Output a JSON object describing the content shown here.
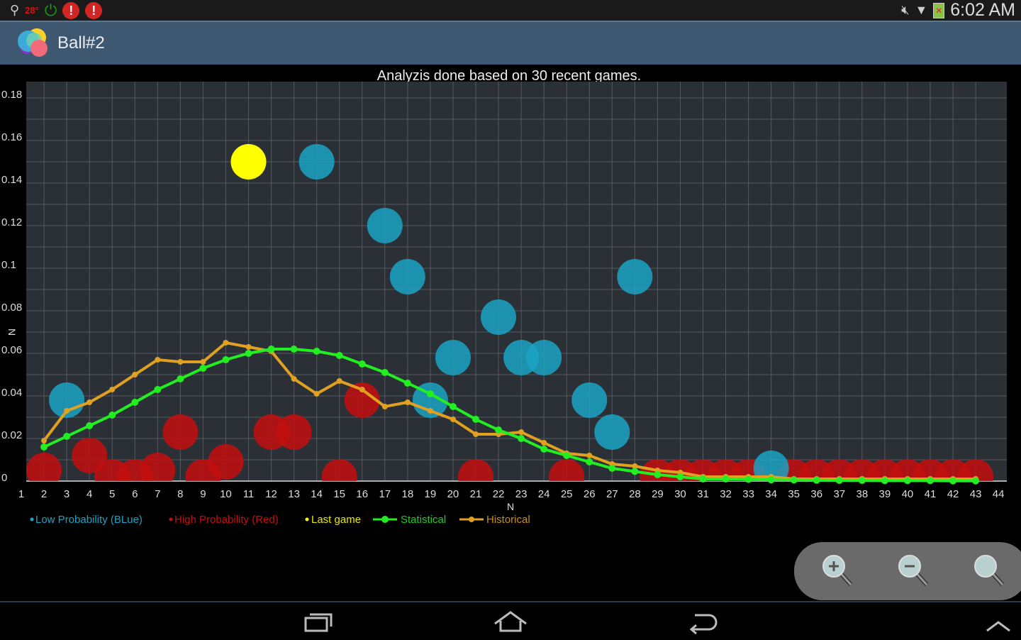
{
  "status_bar": {
    "temperature": "28°",
    "time": "6:02 AM",
    "icons": [
      "usb-icon",
      "power-icon",
      "alert-icon",
      "alert-icon",
      "mute-icon",
      "wifi-icon",
      "battery-icon"
    ]
  },
  "app_bar": {
    "title": "Ball#2",
    "logo": "app-logo-bubbles"
  },
  "colors": {
    "low": "#1aa3c4",
    "high": "#c40e0e",
    "last": "#ffff00",
    "statistical": "#22ee22",
    "historical": "#e0a020",
    "plot_bg": "#2b2f36",
    "app_bar": "#3e5872"
  },
  "chart_data": {
    "type": "scatter",
    "title": "Analyzis done based on 30 recent games.",
    "xlabel": "N",
    "ylabel": "N",
    "xlim": [
      1,
      44
    ],
    "ylim": [
      0,
      0.18
    ],
    "x_ticks": [
      "1",
      "2",
      "3",
      "4",
      "5",
      "6",
      "7",
      "8",
      "9",
      "10",
      "11",
      "12",
      "13",
      "14",
      "15",
      "16",
      "17",
      "18",
      "19",
      "20",
      "21",
      "22",
      "23",
      "24",
      "25",
      "26",
      "27",
      "28",
      "29",
      "30",
      "31",
      "32",
      "33",
      "34",
      "35",
      "36",
      "37",
      "38",
      "39",
      "40",
      "41",
      "42",
      "43",
      "44"
    ],
    "y_ticks": [
      "0",
      "0.02",
      "0.04",
      "0.06",
      "0.08",
      "0.1",
      "0.12",
      "0.14",
      "0.16",
      "0.18"
    ],
    "grid": true,
    "legend_placement": "bottom-left",
    "legend": [
      "Low Probability (BLue)",
      "High Probability (Red)",
      "Last game",
      "Statistical",
      "Historical"
    ],
    "bubbles": {
      "low": [
        [
          3,
          0.038
        ],
        [
          14,
          0.15
        ],
        [
          17,
          0.12
        ],
        [
          18,
          0.096
        ],
        [
          19,
          0.038
        ],
        [
          20,
          0.058
        ],
        [
          22,
          0.077
        ],
        [
          23,
          0.058
        ],
        [
          24,
          0.058
        ],
        [
          26,
          0.038
        ],
        [
          27,
          0.023
        ],
        [
          28,
          0.096
        ],
        [
          34,
          0.006
        ]
      ],
      "high": [
        [
          2,
          0.005
        ],
        [
          4,
          0.012
        ],
        [
          5,
          0.002
        ],
        [
          6,
          0.002
        ],
        [
          7,
          0.005
        ],
        [
          8,
          0.023
        ],
        [
          9,
          0.002
        ],
        [
          10,
          0.009
        ],
        [
          12,
          0.023
        ],
        [
          13,
          0.023
        ],
        [
          15,
          0.002
        ],
        [
          16,
          0.038
        ],
        [
          21,
          0.002
        ],
        [
          25,
          0.002
        ],
        [
          29,
          0.002
        ],
        [
          30,
          0.002
        ],
        [
          31,
          0.002
        ],
        [
          32,
          0.002
        ],
        [
          33,
          0.002
        ],
        [
          35,
          0.002
        ],
        [
          36,
          0.002
        ],
        [
          37,
          0.002
        ],
        [
          38,
          0.002
        ],
        [
          39,
          0.002
        ],
        [
          40,
          0.002
        ],
        [
          41,
          0.002
        ],
        [
          42,
          0.002
        ],
        [
          43,
          0.002
        ]
      ],
      "last": [
        [
          11,
          0.15
        ]
      ]
    },
    "series": [
      {
        "name": "Statistical",
        "x": [
          2,
          3,
          4,
          5,
          6,
          7,
          8,
          9,
          10,
          11,
          12,
          13,
          14,
          15,
          16,
          17,
          18,
          19,
          20,
          21,
          22,
          23,
          24,
          25,
          26,
          27,
          28,
          29,
          30,
          31,
          32,
          33,
          34,
          35,
          36,
          37,
          38,
          39,
          40,
          41,
          42,
          43
        ],
        "values": [
          0.016,
          0.021,
          0.026,
          0.031,
          0.037,
          0.043,
          0.048,
          0.053,
          0.057,
          0.06,
          0.062,
          0.062,
          0.061,
          0.059,
          0.055,
          0.051,
          0.046,
          0.041,
          0.035,
          0.029,
          0.024,
          0.02,
          0.015,
          0.012,
          0.009,
          0.006,
          0.0045,
          0.003,
          0.002,
          0.001,
          0.001,
          0.0008,
          0.0006,
          0.0005,
          0.0004,
          0.0003,
          0.0003,
          0.0002,
          0.0002,
          0.0002,
          0.0001,
          0.0001
        ]
      },
      {
        "name": "Historical",
        "x": [
          2,
          3,
          4,
          5,
          6,
          7,
          8,
          9,
          10,
          11,
          12,
          13,
          14,
          15,
          16,
          17,
          18,
          19,
          20,
          21,
          22,
          23,
          24,
          25,
          26,
          27,
          28,
          29,
          30,
          31,
          32,
          33,
          34,
          35,
          36,
          37,
          38,
          39,
          40,
          41,
          42,
          43
        ],
        "values": [
          0.019,
          0.033,
          0.037,
          0.043,
          0.05,
          0.057,
          0.056,
          0.056,
          0.065,
          0.063,
          0.061,
          0.048,
          0.041,
          0.047,
          0.043,
          0.035,
          0.037,
          0.033,
          0.029,
          0.022,
          0.022,
          0.023,
          0.018,
          0.013,
          0.012,
          0.008,
          0.007,
          0.005,
          0.004,
          0.002,
          0.002,
          0.002,
          0.002,
          0.001,
          0.001,
          0.001,
          0.001,
          0.001,
          0.001,
          0.001,
          0.001,
          0.001
        ]
      }
    ]
  },
  "zoom_controls": [
    "zoom-in",
    "zoom-out",
    "zoom-reset"
  ],
  "nav_bar": [
    "recent-apps",
    "home",
    "back",
    "expand"
  ]
}
